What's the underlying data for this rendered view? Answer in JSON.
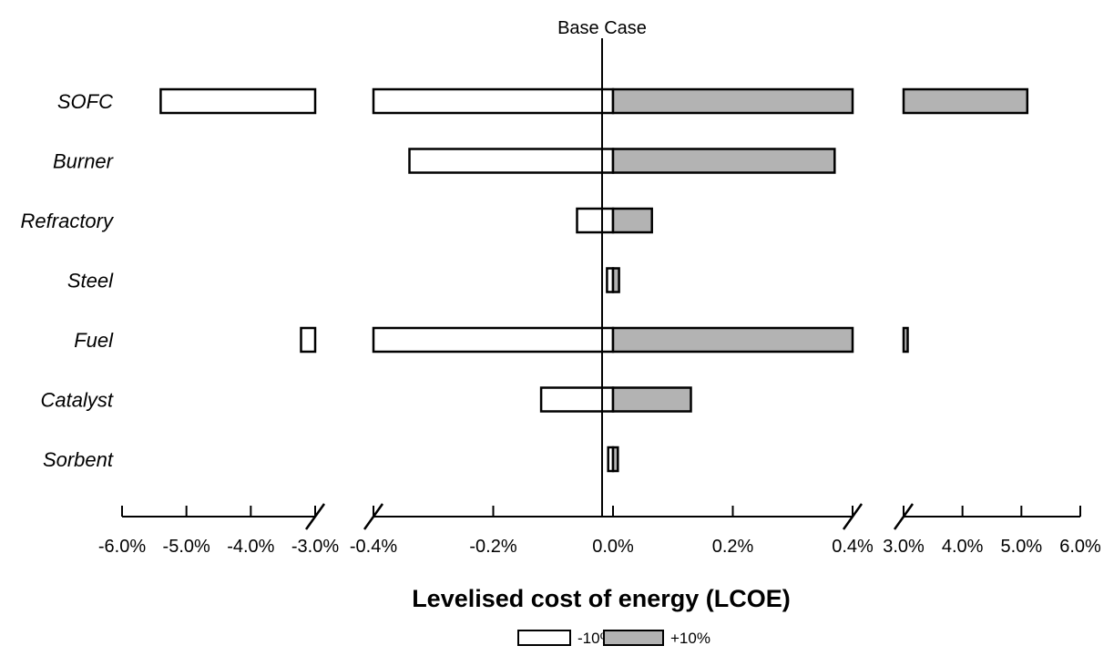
{
  "chart_data": {
    "type": "bar",
    "orientation": "horizontal",
    "title": "",
    "baseline_label": "Base Case",
    "xlabel": "Levelised cost of energy (LCOE)",
    "ylabel": "",
    "axis_break": true,
    "segments": [
      {
        "range": [
          -0.06,
          -0.03
        ],
        "ticks": [
          -0.06,
          -0.05,
          -0.04,
          -0.03
        ],
        "tick_labels": [
          "-6.0%",
          "-5.0%",
          "-4.0%",
          "-3.0%"
        ]
      },
      {
        "range": [
          -0.004,
          0.004
        ],
        "ticks": [
          -0.004,
          -0.002,
          0.0,
          0.002,
          0.004
        ],
        "tick_labels": [
          "-0.4%",
          "-0.2%",
          "0.0%",
          "0.2%",
          "0.4%"
        ]
      },
      {
        "range": [
          0.03,
          0.06
        ],
        "ticks": [
          0.03,
          0.04,
          0.05,
          0.06
        ],
        "tick_labels": [
          "3.0%",
          "4.0%",
          "5.0%",
          "6.0%"
        ]
      }
    ],
    "categories": [
      "SOFC",
      "Burner",
      "Refractory",
      "Steel",
      "Fuel",
      "Catalyst",
      "Sorbent"
    ],
    "series": [
      {
        "name": "-10%",
        "color": "#ffffff",
        "values": [
          -0.054,
          -0.0034,
          -0.0006,
          -0.0001,
          -0.0322,
          -0.0012,
          -8e-05
        ]
      },
      {
        "name": "+10%",
        "color": "#b3b3b3",
        "values": [
          0.051,
          0.0037,
          0.00065,
          0.0001,
          0.0307,
          0.0013,
          8e-05
        ]
      }
    ],
    "legend_position": "bottom-center",
    "grid": false
  }
}
